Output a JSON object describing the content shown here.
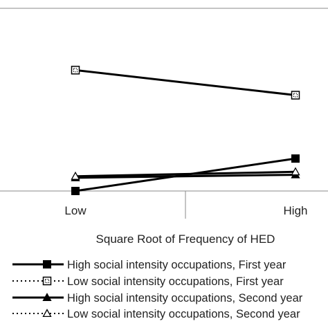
{
  "chart_data": {
    "type": "line",
    "title": "",
    "xlabel": "Square Root of Frequency of HED",
    "ylabel": "",
    "categories": [
      "Low",
      "High"
    ],
    "ylim": [
      0,
      100
    ],
    "grid": false,
    "legend_position": "bottom",
    "series": [
      {
        "name": "High social intensity occupations, First year",
        "values": [
          0,
          22
        ],
        "color": "#000000",
        "marker": "filled-square",
        "line": "solid"
      },
      {
        "name": "Low social intensity occupations, First year",
        "values": [
          82,
          65
        ],
        "color": "#000000",
        "marker": "open-square",
        "line": "solid",
        "legend_line": "dotted"
      },
      {
        "name": "High social intensity occupations, Second year",
        "values": [
          9,
          11
        ],
        "color": "#000000",
        "marker": "filled-triangle",
        "line": "solid"
      },
      {
        "name": "Low social intensity occupations, Second year",
        "values": [
          10,
          13
        ],
        "color": "#000000",
        "marker": "open-triangle",
        "line": "solid",
        "legend_line": "dotted"
      }
    ]
  }
}
